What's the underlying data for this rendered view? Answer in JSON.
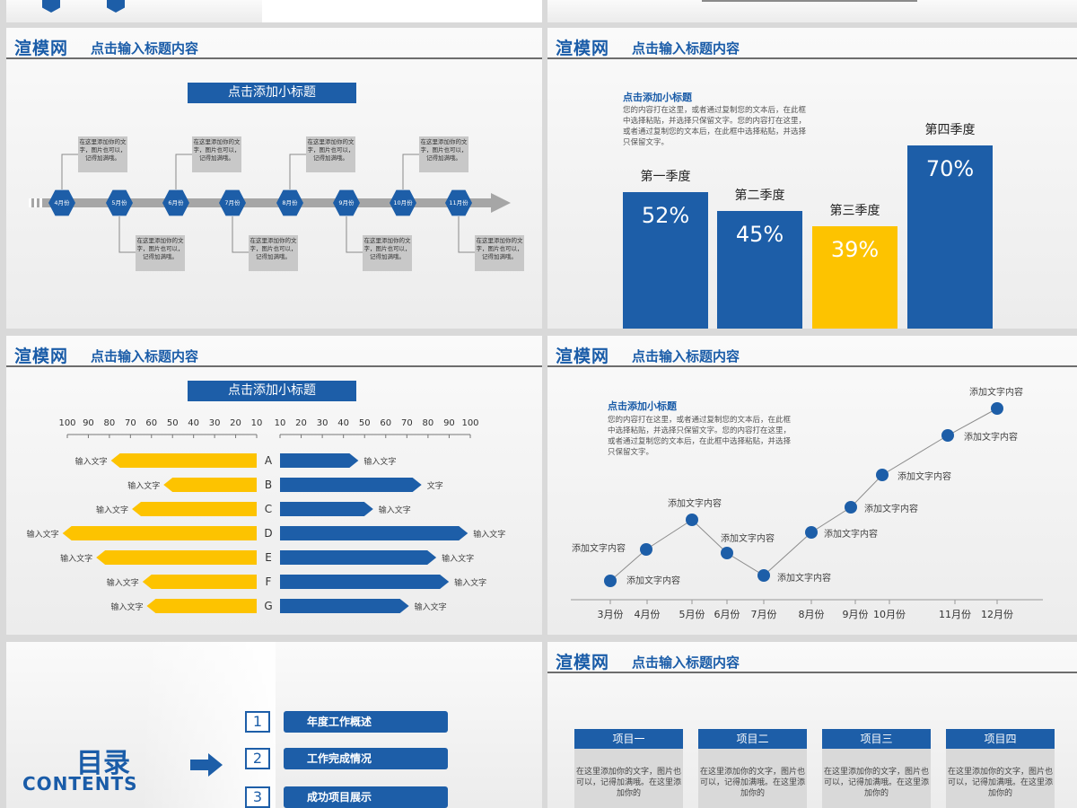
{
  "brand": "渲模网",
  "slide_title": "点击输入标题内容",
  "timeline": {
    "subtitle": "点击添加小标题",
    "months": [
      "4月份",
      "5月份",
      "6月份",
      "7月份",
      "8月份",
      "9月份",
      "10月份",
      "11月份"
    ],
    "note": "在这里添加你的文字，图片也可以，记得加满哦。"
  },
  "quarters": {
    "subtitle": "点击添加小标题",
    "desc": "您的内容打在这里，或者通过复制您的文本后，在此框中选择粘贴，并选择只保留文字。您的内容打在这里，或者通过复制您的文本后，在此框中选择粘贴，并选择只保留文字。",
    "bars": [
      {
        "label": "第一季度",
        "text": "52%",
        "value": 52,
        "color": "#1d5ea8"
      },
      {
        "label": "第二季度",
        "text": "45%",
        "value": 45,
        "color": "#1d5ea8"
      },
      {
        "label": "第三季度",
        "text": "39%",
        "value": 39,
        "color": "#fdc300"
      },
      {
        "label": "第四季度",
        "text": "70%",
        "value": 70,
        "color": "#1d5ea8"
      }
    ]
  },
  "butterfly": {
    "subtitle": "点击添加小标题",
    "left_ticks": [
      "100",
      "90",
      "80",
      "70",
      "60",
      "50",
      "40",
      "30",
      "20",
      "10"
    ],
    "right_ticks": [
      "10",
      "20",
      "30",
      "40",
      "50",
      "60",
      "70",
      "80",
      "90",
      "100"
    ],
    "rows": [
      {
        "cat": "A",
        "left": 65,
        "right": 33,
        "left_label": "输入文字",
        "right_label": "输入文字"
      },
      {
        "cat": "B",
        "left": 40,
        "right": 63,
        "left_label": "输入文字",
        "right_label": "文字"
      },
      {
        "cat": "C",
        "left": 55,
        "right": 40,
        "left_label": "输入文字",
        "right_label": "输入文字"
      },
      {
        "cat": "D",
        "left": 88,
        "right": 85,
        "left_label": "输入文字",
        "right_label": "输入文字"
      },
      {
        "cat": "E",
        "left": 72,
        "right": 70,
        "left_label": "输入文字",
        "right_label": "输入文字"
      },
      {
        "cat": "F",
        "left": 50,
        "right": 76,
        "left_label": "输入文字",
        "right_label": "输入文字"
      },
      {
        "cat": "G",
        "left": 48,
        "right": 57,
        "left_label": "输入文字",
        "right_label": "输入文字"
      }
    ]
  },
  "line": {
    "subtitle": "点击添加小标题",
    "desc": "您的内容打在这里，或者通过复制您的文本后，在此框中选择粘贴，并选择只保留文字。您的内容打在这里，或者通过复制您的文本后，在此框中选择粘贴，并选择只保留文字。",
    "point_label": "添加文字内容",
    "months": [
      "3月份",
      "4月份",
      "5月份",
      "6月份",
      "7月份",
      "8月份",
      "9月份",
      "10月份",
      "11月份",
      "12月份"
    ]
  },
  "toc": {
    "title": "目录",
    "subtitle": "CONTENTS",
    "items": [
      {
        "num": "1",
        "label": "年度工作概述"
      },
      {
        "num": "2",
        "label": "工作完成情况"
      },
      {
        "num": "3",
        "label": "成功项目展示"
      }
    ]
  },
  "projects": {
    "items": [
      "项目一",
      "项目二",
      "项目三",
      "项目四"
    ],
    "body": "在这里添加你的文字，图片也可以，记得加满哦。在这里添加你的"
  },
  "colors": {
    "blue": "#1d5ea8",
    "yellow": "#fdc300",
    "gray": "#c8c8c8"
  }
}
